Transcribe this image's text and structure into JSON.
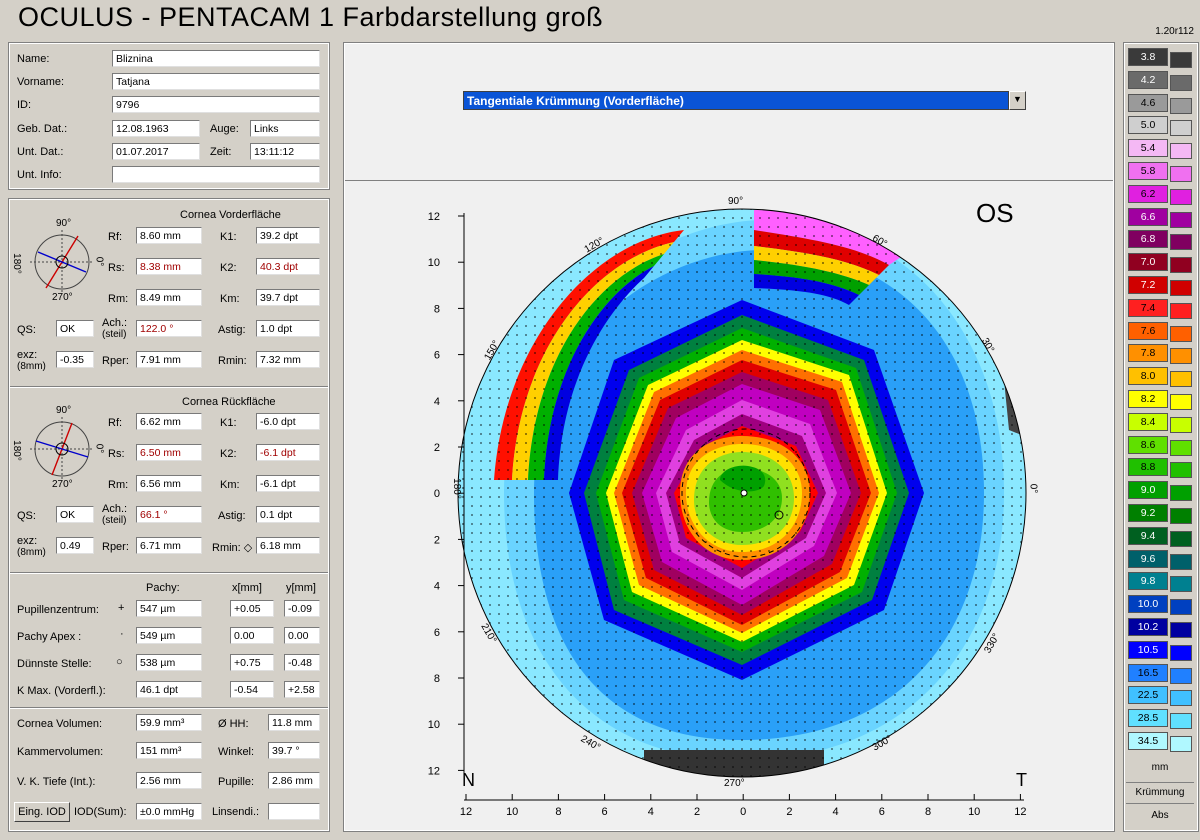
{
  "header": {
    "title": "OCULUS  -  PENTACAM   1 Farbdarstellung groß",
    "version": "1.20r112"
  },
  "patient": {
    "name_label": "Name:",
    "name": "Bliznina",
    "vorname_label": "Vorname:",
    "vorname": "Tatjana",
    "id_label": "ID:",
    "id": "9796",
    "geb_label": "Geb. Dat.:",
    "geb": "12.08.1963",
    "auge_label": "Auge:",
    "auge": "Links",
    "unt_label": "Unt. Dat.:",
    "unt": "01.07.2017",
    "zeit_label": "Zeit:",
    "zeit": "13:11:12",
    "info_label": "Unt. Info:",
    "info": ""
  },
  "cornea_front": {
    "title": "Cornea Vorderfläche",
    "deg90": "90°",
    "deg0": "0°",
    "deg180": "180°",
    "deg270": "270°",
    "rf_label": "Rf:",
    "rf": "8.60 mm",
    "k1_label": "K1:",
    "k1": "39.2 dpt",
    "rs_label": "Rs:",
    "rs": "8.38 mm",
    "k2_label": "K2:",
    "k2": "40.3 dpt",
    "rm_label": "Rm:",
    "rm": "8.49 mm",
    "km_label": "Km:",
    "km": "39.7 dpt",
    "qs_label": "QS:",
    "qs": "OK",
    "ach_label": "Ach.:",
    "ach_sub": "(steil)",
    "ach": "122.0 °",
    "astig_label": "Astig:",
    "astig": "1.0 dpt",
    "exz_label": "exz:",
    "exz_sub": "(8mm)",
    "exz": "-0.35",
    "rper_label": "Rper:",
    "rper": "7.91 mm",
    "rmin_label": "Rmin:",
    "rmin": "7.32 mm"
  },
  "cornea_back": {
    "title": "Cornea Rückfläche",
    "deg90": "90°",
    "deg0": "0°",
    "deg180": "180°",
    "deg270": "270°",
    "rf_label": "Rf:",
    "rf": "6.62 mm",
    "k1_label": "K1:",
    "k1": "-6.0 dpt",
    "rs_label": "Rs:",
    "rs": "6.50 mm",
    "k2_label": "K2:",
    "k2": "-6.1 dpt",
    "rm_label": "Rm:",
    "rm": "6.56 mm",
    "km_label": "Km:",
    "km": "-6.1 dpt",
    "qs_label": "QS:",
    "qs": "OK",
    "ach_label": "Ach.:",
    "ach_sub": "(steil)",
    "ach": "66.1 °",
    "astig_label": "Astig:",
    "astig": "0.1 dpt",
    "exz_label": "exz:",
    "exz_sub": "(8mm)",
    "exz": "0.49",
    "rper_label": "Rper:",
    "rper": "6.71 mm",
    "rmin_label": "Rmin: ◇",
    "rmin": "6.18 mm"
  },
  "pachy": {
    "col_pachy": "Pachy:",
    "col_x": "x[mm]",
    "col_y": "y[mm]",
    "rows": [
      {
        "label": "Pupillenzentrum:",
        "sym": "+",
        "pachy": "547 µm",
        "x": "+0.05",
        "y": "-0.09"
      },
      {
        "label": "Pachy Apex :",
        "sym": "·",
        "pachy": "549 µm",
        "x": "0.00",
        "y": "0.00"
      },
      {
        "label": "Dünnste Stelle:",
        "sym": "○",
        "pachy": "538 µm",
        "x": "+0.75",
        "y": "-0.48"
      },
      {
        "label": "K Max. (Vorderfl.):",
        "sym": "",
        "pachy": "46.1 dpt",
        "x": "-0.54",
        "y": "+2.58"
      }
    ]
  },
  "volume": {
    "cv_label": "Cornea Volumen:",
    "cv": "59.9 mm³",
    "hh_label": "Ø HH:",
    "hh": "11.8 mm",
    "kv_label": "Kammervolumen:",
    "kv": "151 mm³",
    "winkel_label": "Winkel:",
    "winkel": "39.7 °",
    "vk_label": "V. K. Tiefe (Int.):",
    "vk": "2.56 mm",
    "pupille_label": "Pupille:",
    "pupille": "2.86 mm",
    "iod_button": "Eing. IOD",
    "iod_label": "IOD(Sum):",
    "iod": "±0.0 mmHg",
    "linsen_label": "Linsendi.:",
    "linsen": ""
  },
  "map": {
    "dropdown": "Tangentiale Krümmung (Vorderfläche)",
    "eye": "OS",
    "left_label": "N",
    "right_label": "T",
    "y_ticks": [
      "12",
      "10",
      "8",
      "6",
      "4",
      "2",
      "0",
      "2",
      "4",
      "6",
      "8",
      "10",
      "12"
    ],
    "x_ticks": [
      "12",
      "10",
      "8",
      "6",
      "4",
      "2",
      "0",
      "2",
      "4",
      "6",
      "8",
      "10",
      "12"
    ],
    "angles": [
      "90°",
      "60°",
      "30°",
      "0°",
      "330°",
      "300°",
      "270°",
      "240°",
      "210°",
      "180°",
      "150°",
      "120°"
    ]
  },
  "scale": {
    "values": [
      "3.8",
      "4.2",
      "4.6",
      "5.0",
      "5.4",
      "5.8",
      "6.2",
      "6.6",
      "6.8",
      "7.0",
      "7.2",
      "7.4",
      "7.6",
      "7.8",
      "8.0",
      "8.2",
      "8.4",
      "8.6",
      "8.8",
      "9.0",
      "9.2",
      "9.4",
      "9.6",
      "9.8",
      "10.0",
      "10.2",
      "10.5",
      "16.5",
      "22.5",
      "28.5",
      "34.5"
    ],
    "colors": [
      "#3a3a3a",
      "#6a6a6a",
      "#9a9a9a",
      "#cfcfcf",
      "#f4b8f4",
      "#f070f0",
      "#e020e0",
      "#a000a0",
      "#800060",
      "#900020",
      "#d00000",
      "#ff2020",
      "#ff6000",
      "#ff9000",
      "#ffc000",
      "#ffff00",
      "#c8ff00",
      "#60e000",
      "#20c000",
      "#00a000",
      "#008000",
      "#006020",
      "#00606a",
      "#008090",
      "#0040c0",
      "#0000a0",
      "#0000ff",
      "#2080ff",
      "#40c0ff",
      "#60e0ff",
      "#b0f8ff"
    ],
    "unit": "mm",
    "mode": "Krümmung",
    "abs": "Abs"
  }
}
